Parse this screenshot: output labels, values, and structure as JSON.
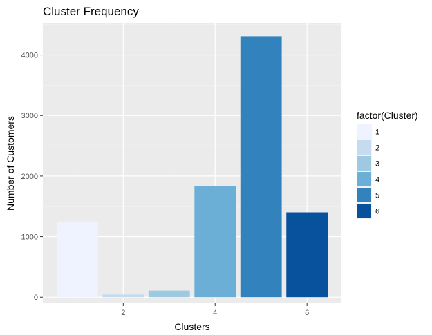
{
  "chart_data": {
    "type": "bar",
    "title": "Cluster Frequency",
    "xlabel": "Clusters",
    "ylabel": "Number of Customers",
    "categories": [
      "1",
      "2",
      "3",
      "4",
      "5",
      "6"
    ],
    "x": [
      1,
      2,
      3,
      4,
      5,
      6
    ],
    "values": [
      1240,
      45,
      110,
      1830,
      4310,
      1400
    ],
    "colors": [
      "#eff3ff",
      "#c6dbef",
      "#9ecae1",
      "#6baed6",
      "#3182bd",
      "#08519c"
    ],
    "xlim": [
      0.25,
      6.75
    ],
    "ylim": [
      -100,
      4520
    ],
    "xticks": [
      2,
      4,
      6
    ],
    "yticks": [
      0,
      1000,
      2000,
      3000,
      4000
    ],
    "grid": true,
    "background": "#ebebeb",
    "legend": {
      "title": "factor(Cluster)",
      "position": "right",
      "entries": [
        "1",
        "2",
        "3",
        "4",
        "5",
        "6"
      ]
    }
  }
}
